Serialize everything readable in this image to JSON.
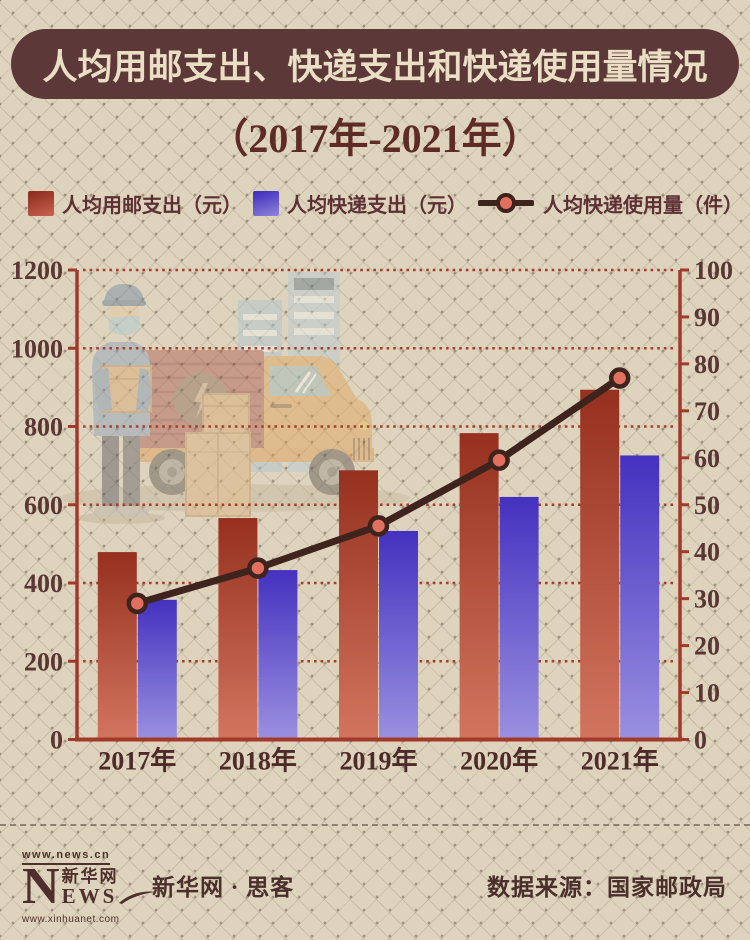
{
  "header": {
    "title": "人均用邮支出、快递支出和快递使用量情况",
    "subtitle": "（2017年-2021年）"
  },
  "chart_data": {
    "type": "combo-bar-line",
    "categories": [
      "2017年",
      "2018年",
      "2019年",
      "2020年",
      "2021年"
    ],
    "series": [
      {
        "name": "人均用邮支出（元）",
        "type": "bar",
        "axis": "left",
        "color_top": "#96301f",
        "color_bottom": "#d2755f",
        "values": [
          479,
          566,
          688,
          783,
          894
        ]
      },
      {
        "name": "人均快递支出（元）",
        "type": "bar",
        "axis": "left",
        "color_top": "#4431bf",
        "color_bottom": "#9a90e0",
        "values": [
          357,
          433,
          533,
          620,
          726
        ]
      },
      {
        "name": "人均快递使用量（件）",
        "type": "line",
        "axis": "right",
        "color": "#3f231d",
        "marker_fill": "#e2705f",
        "values": [
          29,
          36.5,
          45.5,
          59.5,
          77
        ]
      }
    ],
    "left_axis": {
      "min": 0,
      "max": 1200,
      "step": 200
    },
    "right_axis": {
      "min": 0,
      "max": 100,
      "step": 10
    },
    "grid": "dotted horizontal, aligned to left axis",
    "legend_position": "top"
  },
  "footer": {
    "logo_url_top": "www.news.cn",
    "logo_n": "N",
    "logo_cn": "新华网",
    "logo_ews": "EWS",
    "logo_url_bottom": "www.xinhuanet.com",
    "site": "新华网 · 思客",
    "source": "数据来源：国家邮政局"
  },
  "colors": {
    "background": "#ded3bd",
    "title_bar": "#5c3938",
    "title_text": "#eadfc4",
    "subtitle_text": "#5f2b27",
    "axis": "#a23a29",
    "gridline": "#a73c2b",
    "tick_label": "#5a3634",
    "bar_red_top": "#96301f",
    "bar_red_bottom": "#d2755f",
    "bar_blue_top": "#4431bf",
    "bar_blue_bottom": "#9a90e0",
    "line": "#3f231d",
    "marker_fill": "#e2705f"
  }
}
